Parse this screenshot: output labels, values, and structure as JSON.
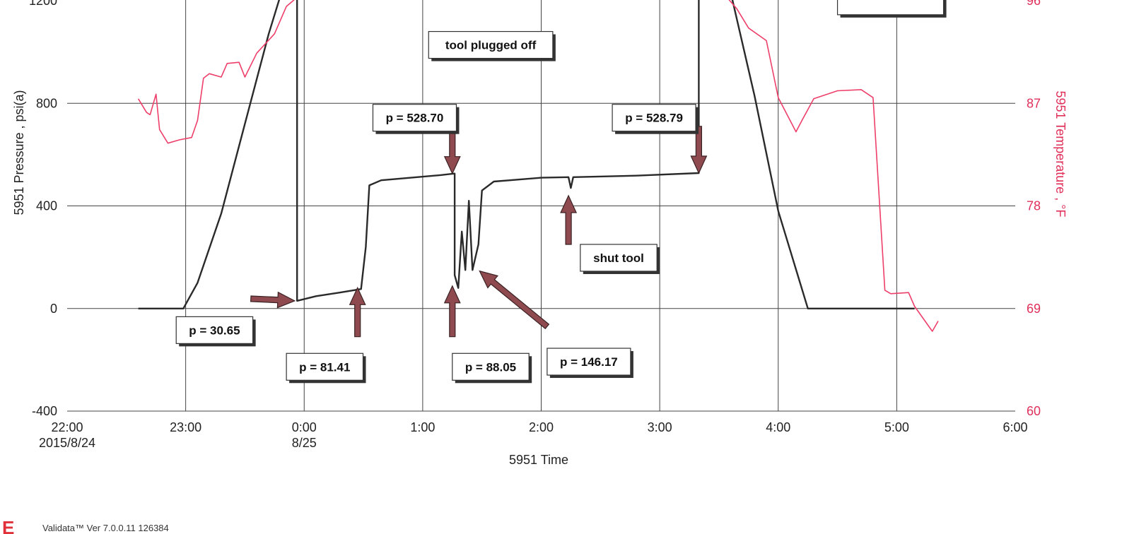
{
  "chart_data": {
    "type": "line",
    "xlabel": "5951 Time",
    "ylabel": "5951 Pressure , psi(a)",
    "y2label": "5951 Temperature , °F",
    "ylim": [
      -400,
      1200
    ],
    "y2lim": [
      60,
      96
    ],
    "xlim_hours": [
      22,
      30
    ],
    "x_ticks": [
      {
        "h": 22,
        "label": "22:00",
        "sub": "2015/8/24"
      },
      {
        "h": 23,
        "label": "23:00",
        "sub": ""
      },
      {
        "h": 24,
        "label": "0:00",
        "sub": "8/25"
      },
      {
        "h": 25,
        "label": "1:00",
        "sub": ""
      },
      {
        "h": 26,
        "label": "2:00",
        "sub": ""
      },
      {
        "h": 27,
        "label": "3:00",
        "sub": ""
      },
      {
        "h": 28,
        "label": "4:00",
        "sub": ""
      },
      {
        "h": 29,
        "label": "5:00",
        "sub": ""
      },
      {
        "h": 30,
        "label": "6:00",
        "sub": ""
      }
    ],
    "y_ticks": [
      {
        "v": 1200,
        "label": "1200"
      },
      {
        "v": 800,
        "label": "800"
      },
      {
        "v": 400,
        "label": "400"
      },
      {
        "v": 0,
        "label": "0"
      },
      {
        "v": -400,
        "label": "-400"
      }
    ],
    "y2_ticks": [
      {
        "v": 96,
        "label": "96"
      },
      {
        "v": 87,
        "label": "87"
      },
      {
        "v": 78,
        "label": "78"
      },
      {
        "v": 69,
        "label": "69"
      },
      {
        "v": 60,
        "label": "60"
      }
    ],
    "grid": true,
    "colors": {
      "pressure": "#2a2a2a",
      "temperature": "#ee3f6a",
      "arrow": "#8e4a4f"
    },
    "series": [
      {
        "name": "5951 Pressure",
        "axis": "left",
        "points": [
          [
            22.6,
            0
          ],
          [
            22.98,
            0
          ],
          [
            23.1,
            100
          ],
          [
            23.3,
            370
          ],
          [
            23.5,
            720
          ],
          [
            23.7,
            1070
          ],
          [
            23.8,
            1220
          ],
          [
            23.94,
            1260
          ],
          [
            23.94,
            30
          ],
          [
            24.1,
            48
          ],
          [
            24.3,
            62
          ],
          [
            24.48,
            76
          ],
          [
            24.52,
            240
          ],
          [
            24.55,
            480
          ],
          [
            24.65,
            500
          ],
          [
            24.9,
            510
          ],
          [
            25.15,
            520
          ],
          [
            25.27,
            526
          ],
          [
            25.27,
            130
          ],
          [
            25.3,
            80
          ],
          [
            25.33,
            300
          ],
          [
            25.36,
            150
          ],
          [
            25.39,
            420
          ],
          [
            25.42,
            150
          ],
          [
            25.47,
            250
          ],
          [
            25.5,
            460
          ],
          [
            25.6,
            495
          ],
          [
            26.0,
            510
          ],
          [
            26.23,
            512
          ],
          [
            26.25,
            470
          ],
          [
            26.27,
            512
          ],
          [
            26.8,
            518
          ],
          [
            27.33,
            528
          ],
          [
            27.33,
            1260
          ],
          [
            27.6,
            1230
          ],
          [
            27.8,
            830
          ],
          [
            28.0,
            380
          ],
          [
            28.25,
            0
          ],
          [
            29.15,
            0
          ]
        ]
      },
      {
        "name": "5951 Temperature",
        "axis": "right",
        "points": [
          [
            22.6,
            87.4
          ],
          [
            22.67,
            86.2
          ],
          [
            22.7,
            86.0
          ],
          [
            22.75,
            87.8
          ],
          [
            22.78,
            84.7
          ],
          [
            22.85,
            83.5
          ],
          [
            22.95,
            83.8
          ],
          [
            23.05,
            84.0
          ],
          [
            23.1,
            85.5
          ],
          [
            23.15,
            89.2
          ],
          [
            23.2,
            89.6
          ],
          [
            23.3,
            89.3
          ],
          [
            23.35,
            90.5
          ],
          [
            23.45,
            90.6
          ],
          [
            23.5,
            89.3
          ],
          [
            23.6,
            91.4
          ],
          [
            23.75,
            93.1
          ],
          [
            23.85,
            95.5
          ],
          [
            23.94,
            96.3
          ],
          [
            27.55,
            96.5
          ],
          [
            27.65,
            95.3
          ],
          [
            27.75,
            93.6
          ],
          [
            27.9,
            92.5
          ],
          [
            28.0,
            87.5
          ],
          [
            28.05,
            86.5
          ],
          [
            28.15,
            84.5
          ],
          [
            28.2,
            85.5
          ],
          [
            28.3,
            87.4
          ],
          [
            28.5,
            88.1
          ],
          [
            28.7,
            88.2
          ],
          [
            28.8,
            87.5
          ],
          [
            28.9,
            70.6
          ],
          [
            28.95,
            70.3
          ],
          [
            29.1,
            70.4
          ],
          [
            29.15,
            69.2
          ],
          [
            29.3,
            67.0
          ],
          [
            29.35,
            67.9
          ]
        ]
      }
    ],
    "annotations": [
      {
        "text": "tool plugged off",
        "box_h": 25.05,
        "box_v": 1080
      },
      {
        "text": "p = 528.70",
        "box_h": 24.58,
        "box_v": 796,
        "arrow_from_h": 25.25,
        "arrow_from_v": 710,
        "arrow_to_h": 25.25,
        "arrow_to_v": 526
      },
      {
        "text": "p = 528.79",
        "box_h": 26.6,
        "box_v": 796,
        "arrow_from_h": 27.33,
        "arrow_from_v": 710,
        "arrow_to_h": 27.33,
        "arrow_to_v": 528
      },
      {
        "text": "p = 30.65",
        "box_h": 22.92,
        "box_v": -32,
        "arrow_from_h": 23.55,
        "arrow_from_v": 38,
        "arrow_to_h": 23.92,
        "arrow_to_v": 30
      },
      {
        "text": "p = 81.41",
        "box_h": 23.85,
        "box_v": -175,
        "arrow_from_h": 24.45,
        "arrow_from_v": -110,
        "arrow_to_h": 24.45,
        "arrow_to_v": 81
      },
      {
        "text": "p = 88.05",
        "box_h": 25.25,
        "box_v": -175,
        "arrow_from_h": 25.25,
        "arrow_from_v": -110,
        "arrow_to_h": 25.25,
        "arrow_to_v": 88
      },
      {
        "text": "p = 146.17",
        "box_h": 26.05,
        "box_v": -155,
        "arrow_from_h": 26.05,
        "arrow_from_v": -70,
        "arrow_to_h": 25.48,
        "arrow_to_v": 146
      },
      {
        "text": "shut tool",
        "box_h": 26.33,
        "box_v": 250,
        "arrow_from_h": 26.23,
        "arrow_from_v": 250,
        "arrow_to_h": 26.23,
        "arrow_to_v": 440
      },
      {
        "text": "",
        "box_h": 28.5,
        "box_v": 1250
      }
    ]
  },
  "footer": {
    "brand_mark": "E",
    "text": "Validata™ Ver 7.0.0.11 126384"
  }
}
